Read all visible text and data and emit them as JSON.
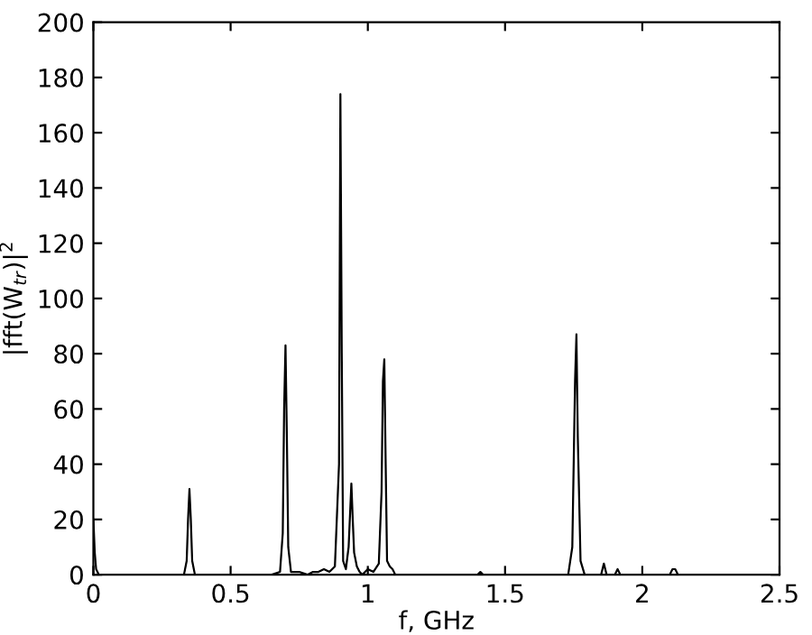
{
  "chart_data": {
    "type": "line",
    "xlabel": "f, GHz",
    "ylabel": "|fft(W$_{tr}$)|$^{2}$",
    "series": [
      {
        "color": "#000000",
        "x": [
          0,
          0.005,
          0.01,
          0.02,
          0.1,
          0.2,
          0.3,
          0.33,
          0.34,
          0.345,
          0.35,
          0.355,
          0.36,
          0.37,
          0.45,
          0.55,
          0.65,
          0.68,
          0.69,
          0.695,
          0.7,
          0.705,
          0.71,
          0.72,
          0.75,
          0.78,
          0.8,
          0.82,
          0.84,
          0.86,
          0.88,
          0.895,
          0.9,
          0.905,
          0.91,
          0.92,
          0.93,
          0.94,
          0.945,
          0.95,
          0.96,
          0.97,
          0.98,
          1.0,
          1.02,
          1.04,
          1.05,
          1.055,
          1.06,
          1.065,
          1.07,
          1.08,
          1.09,
          1.1,
          1.2,
          1.4,
          1.41,
          1.42,
          1.6,
          1.73,
          1.745,
          1.755,
          1.76,
          1.765,
          1.775,
          1.79,
          1.85,
          1.86,
          1.87,
          1.9,
          1.91,
          1.92,
          1.95,
          2.1,
          2.11,
          2.12,
          2.13,
          2.15,
          2.3,
          2.5
        ],
        "values": [
          20,
          8,
          2,
          0,
          0,
          0,
          0,
          0,
          5,
          20,
          31,
          20,
          5,
          0,
          0,
          0,
          0,
          1,
          15,
          60,
          83,
          50,
          10,
          1,
          1,
          0,
          1,
          1,
          2,
          1,
          3,
          40,
          174,
          80,
          5,
          2,
          10,
          33,
          20,
          8,
          3,
          1,
          0,
          2,
          1,
          4,
          30,
          70,
          78,
          40,
          5,
          3,
          2,
          0,
          0,
          0,
          1,
          0,
          0,
          0,
          10,
          70,
          87,
          50,
          5,
          0,
          0,
          4,
          0,
          0,
          2,
          0,
          0,
          0,
          2,
          2,
          0,
          0,
          0,
          0
        ]
      }
    ],
    "xlim": [
      0,
      2.5
    ],
    "ylim": [
      0,
      200
    ],
    "xticks": [
      0,
      0.5,
      1,
      1.5,
      2,
      2.5
    ],
    "yticks": [
      0,
      20,
      40,
      60,
      80,
      100,
      120,
      140,
      160,
      180,
      200
    ],
    "grid": false,
    "legend": false,
    "marker": "none",
    "line_style": "solid"
  }
}
